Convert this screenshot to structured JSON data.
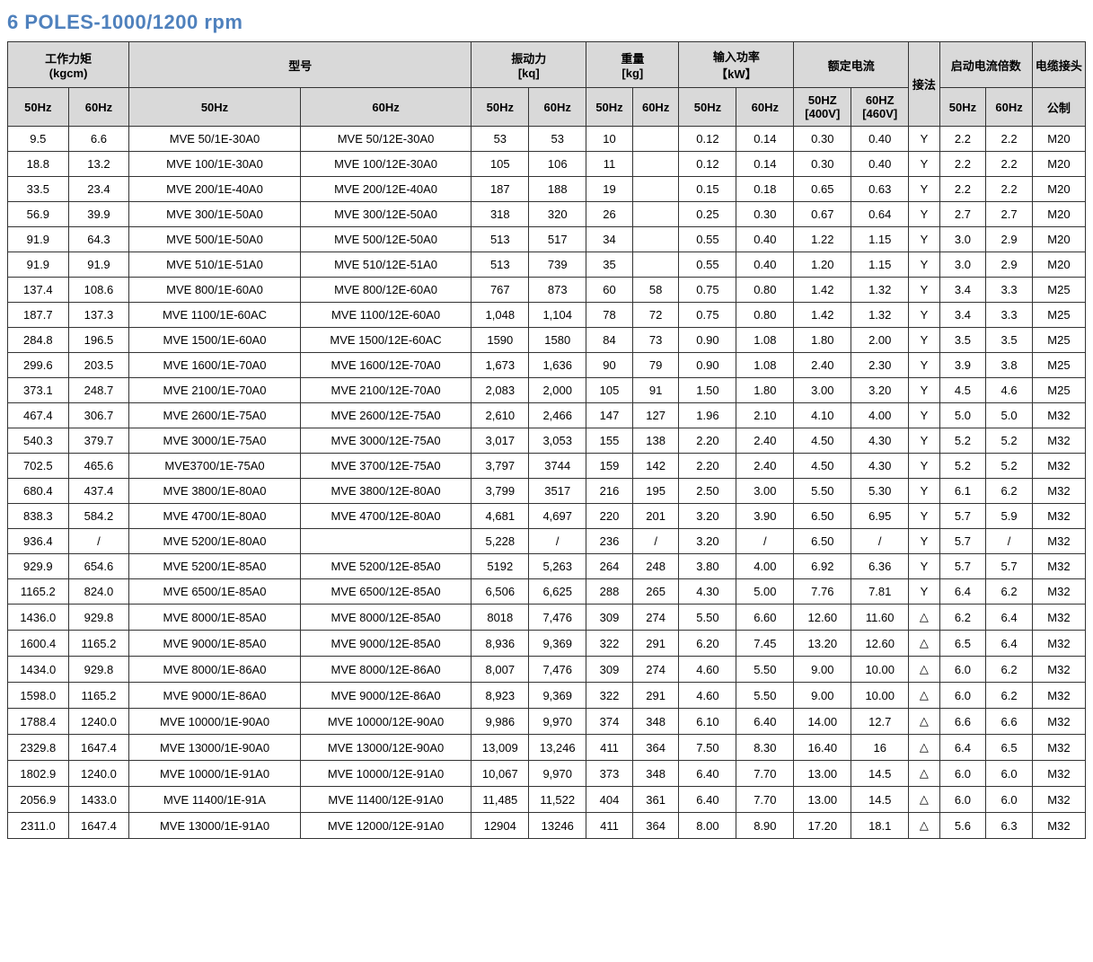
{
  "title": "6    POLES-1000/1200 rpm",
  "headers": {
    "g1": "工作力矩\n(kgcm)",
    "g2": "型号",
    "g3": "振动力\n[kq]",
    "g4": "重量\n[kg]",
    "g5": "输入功率\n【kW】",
    "g6": "额定电流",
    "g7": "接法",
    "g8": "启动电流倍数",
    "g9": "电缆接头",
    "s50": "50Hz",
    "s60": "60Hz",
    "s50v": "50HZ\n[400V]",
    "s60v": "60HZ\n[460V]",
    "metric": "公制"
  },
  "rows": [
    [
      "9.5",
      "6.6",
      "MVE 50/1E-30A0",
      "MVE 50/12E-30A0",
      "53",
      "53",
      "10",
      "",
      "0.12",
      "0.14",
      "0.30",
      "0.40",
      "Y",
      "2.2",
      "2.2",
      "M20"
    ],
    [
      "18.8",
      "13.2",
      "MVE 100/1E-30A0",
      "MVE 100/12E-30A0",
      "105",
      "106",
      "11",
      "",
      "0.12",
      "0.14",
      "0.30",
      "0.40",
      "Y",
      "2.2",
      "2.2",
      "M20"
    ],
    [
      "33.5",
      "23.4",
      "MVE 200/1E-40A0",
      "MVE 200/12E-40A0",
      "187",
      "188",
      "19",
      "",
      "0.15",
      "0.18",
      "0.65",
      "0.63",
      "Y",
      "2.2",
      "2.2",
      "M20"
    ],
    [
      "56.9",
      "39.9",
      "MVE 300/1E-50A0",
      "MVE 300/12E-50A0",
      "318",
      "320",
      "26",
      "",
      "0.25",
      "0.30",
      "0.67",
      "0.64",
      "Y",
      "2.7",
      "2.7",
      "M20"
    ],
    [
      "91.9",
      "64.3",
      "MVE 500/1E-50A0",
      "MVE 500/12E-50A0",
      "513",
      "517",
      "34",
      "",
      "0.55",
      "0.40",
      "1.22",
      "1.15",
      "Y",
      "3.0",
      "2.9",
      "M20"
    ],
    [
      "91.9",
      "91.9",
      "MVE 510/1E-51A0",
      "MVE 510/12E-51A0",
      "513",
      "739",
      "35",
      "",
      "0.55",
      "0.40",
      "1.20",
      "1.15",
      "Y",
      "3.0",
      "2.9",
      "M20"
    ],
    [
      "137.4",
      "108.6",
      "MVE 800/1E-60A0",
      "MVE 800/12E-60A0",
      "767",
      "873",
      "60",
      "58",
      "0.75",
      "0.80",
      "1.42",
      "1.32",
      "Y",
      "3.4",
      "3.3",
      "M25"
    ],
    [
      "187.7",
      "137.3",
      "MVE 1100/1E-60AC",
      "MVE 1100/12E-60A0",
      "1,048",
      "1,104",
      "78",
      "72",
      "0.75",
      "0.80",
      "1.42",
      "1.32",
      "Y",
      "3.4",
      "3.3",
      "M25"
    ],
    [
      "284.8",
      "196.5",
      "MVE 1500/1E-60A0",
      "MVE 1500/12E-60AC",
      "1590",
      "1580",
      "84",
      "73",
      "0.90",
      "1.08",
      "1.80",
      "2.00",
      "Y",
      "3.5",
      "3.5",
      "M25"
    ],
    [
      "299.6",
      "203.5",
      "MVE 1600/1E-70A0",
      "MVE 1600/12E-70A0",
      "1,673",
      "1,636",
      "90",
      "79",
      "0.90",
      "1.08",
      "2.40",
      "2.30",
      "Y",
      "3.9",
      "3.8",
      "M25"
    ],
    [
      "373.1",
      "248.7",
      "MVE 2100/1E-70A0",
      "MVE 2100/12E-70A0",
      "2,083",
      "2,000",
      "105",
      "91",
      "1.50",
      "1.80",
      "3.00",
      "3.20",
      "Y",
      "4.5",
      "4.6",
      "M25"
    ],
    [
      "467.4",
      "306.7",
      "MVE 2600/1E-75A0",
      "MVE 2600/12E-75A0",
      "2,610",
      "2,466",
      "147",
      "127",
      "1.96",
      "2.10",
      "4.10",
      "4.00",
      "Y",
      "5.0",
      "5.0",
      "M32"
    ],
    [
      "540.3",
      "379.7",
      "MVE 3000/1E-75A0",
      "MVE 3000/12E-75A0",
      "3,017",
      "3,053",
      "155",
      "138",
      "2.20",
      "2.40",
      "4.50",
      "4.30",
      "Y",
      "5.2",
      "5.2",
      "M32"
    ],
    [
      "702.5",
      "465.6",
      "MVE3700/1E-75A0",
      "MVE 3700/12E-75A0",
      "3,797",
      "3744",
      "159",
      "142",
      "2.20",
      "2.40",
      "4.50",
      "4.30",
      "Y",
      "5.2",
      "5.2",
      "M32"
    ],
    [
      "680.4",
      "437.4",
      "MVE 3800/1E-80A0",
      "MVE 3800/12E-80A0",
      "3,799",
      "3517",
      "216",
      "195",
      "2.50",
      "3.00",
      "5.50",
      "5.30",
      "Y",
      "6.1",
      "6.2",
      "M32"
    ],
    [
      "838.3",
      "584.2",
      "MVE 4700/1E-80A0",
      "MVE 4700/12E-80A0",
      "4,681",
      "4,697",
      "220",
      "201",
      "3.20",
      "3.90",
      "6.50",
      "6.95",
      "Y",
      "5.7",
      "5.9",
      "M32"
    ],
    [
      "936.4",
      "/",
      "MVE 5200/1E-80A0",
      "",
      "5,228",
      "/",
      "236",
      "/",
      "3.20",
      "/",
      "6.50",
      "/",
      "Y",
      "5.7",
      "/",
      "M32"
    ],
    [
      "929.9",
      "654.6",
      "MVE 5200/1E-85A0",
      "MVE 5200/12E-85A0",
      "5192",
      "5,263",
      "264",
      "248",
      "3.80",
      "4.00",
      "6.92",
      "6.36",
      "Y",
      "5.7",
      "5.7",
      "M32"
    ],
    [
      "1165.2",
      "824.0",
      "MVE 6500/1E-85A0",
      "MVE 6500/12E-85A0",
      "6,506",
      "6,625",
      "288",
      "265",
      "4.30",
      "5.00",
      "7.76",
      "7.81",
      "Y",
      "6.4",
      "6.2",
      "M32"
    ],
    [
      "1436.0",
      "929.8",
      "MVE 8000/1E-85A0",
      "MVE 8000/12E-85A0",
      "8018",
      "7,476",
      "309",
      "274",
      "5.50",
      "6.60",
      "12.60",
      "11.60",
      "△",
      "6.2",
      "6.4",
      "M32"
    ],
    [
      "1600.4",
      "1165.2",
      "MVE 9000/1E-85A0",
      "MVE 9000/12E-85A0",
      "8,936",
      "9,369",
      "322",
      "291",
      "6.20",
      "7.45",
      "13.20",
      "12.60",
      "△",
      "6.5",
      "6.4",
      "M32"
    ],
    [
      "1434.0",
      "929.8",
      "MVE 8000/1E-86A0",
      "MVE 8000/12E-86A0",
      "8,007",
      "7,476",
      "309",
      "274",
      "4.60",
      "5.50",
      "9.00",
      "10.00",
      "△",
      "6.0",
      "6.2",
      "M32"
    ],
    [
      "1598.0",
      "1165.2",
      "MVE 9000/1E-86A0",
      "MVE 9000/12E-86A0",
      "8,923",
      "9,369",
      "322",
      "291",
      "4.60",
      "5.50",
      "9.00",
      "10.00",
      "△",
      "6.0",
      "6.2",
      "M32"
    ],
    [
      "1788.4",
      "1240.0",
      "MVE 10000/1E-90A0",
      "MVE 10000/12E-90A0",
      "9,986",
      "9,970",
      "374",
      "348",
      "6.10",
      "6.40",
      "14.00",
      "12.7",
      "△",
      "6.6",
      "6.6",
      "M32"
    ],
    [
      "2329.8",
      "1647.4",
      "MVE 13000/1E-90A0",
      "MVE  13000/12E-90A0",
      "13,009",
      "13,246",
      "411",
      "364",
      "7.50",
      "8.30",
      "16.40",
      "16",
      "△",
      "6.4",
      "6.5",
      "M32"
    ],
    [
      "1802.9",
      "1240.0",
      "MVE 10000/1E-91A0",
      "MVE 10000/12E-91A0",
      "10,067",
      "9,970",
      "373",
      "348",
      "6.40",
      "7.70",
      "13.00",
      "14.5",
      "△",
      "6.0",
      "6.0",
      "M32"
    ],
    [
      "2056.9",
      "1433.0",
      "MVE 11400/1E-91A",
      "MVE 11400/12E-91A0",
      "11,485",
      "11,522",
      "404",
      "361",
      "6.40",
      "7.70",
      "13.00",
      "14.5",
      "△",
      "6.0",
      "6.0",
      "M32"
    ],
    [
      "2311.0",
      "1647.4",
      "MVE 13000/1E-91A0",
      "MVE 12000/12E-91A0",
      "12904",
      "13246",
      "411",
      "364",
      "8.00",
      "8.90",
      "17.20",
      "18.1",
      "△",
      "5.6",
      "6.3",
      "M32"
    ]
  ]
}
